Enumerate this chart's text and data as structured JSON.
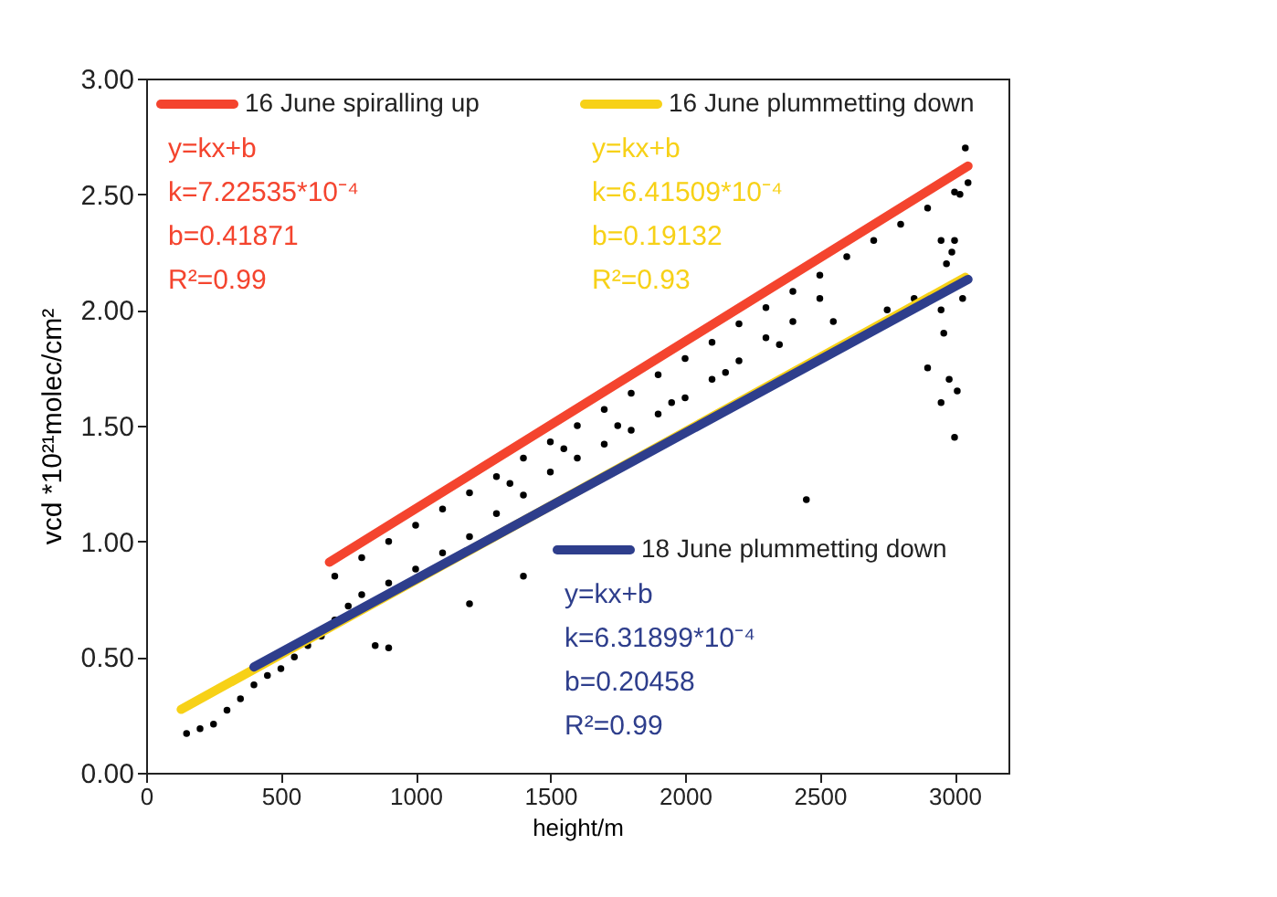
{
  "chart_data": {
    "type": "scatter",
    "xlabel": "height/m",
    "ylabel": "vcd  *10²¹molec/cm²",
    "xlim": [
      0,
      3200
    ],
    "ylim": [
      0,
      3
    ],
    "xticks": [
      0,
      500,
      1000,
      1500,
      2000,
      2500,
      3000
    ],
    "yticks": [
      {
        "value": 0,
        "label": "0.00"
      },
      {
        "value": 0.5,
        "label": "0.50"
      },
      {
        "value": 1,
        "label": "1.00"
      },
      {
        "value": 1.5,
        "label": "1.50"
      },
      {
        "value": 2,
        "label": "2.00"
      },
      {
        "value": 2.5,
        "label": "2.50"
      },
      {
        "value": 3,
        "label": "3.00"
      }
    ],
    "grid": false,
    "legend": "top left",
    "series": [
      {
        "marker": "circle",
        "color": "#000000",
        "x": [
          150,
          200,
          250,
          300,
          350,
          400,
          450,
          500,
          550,
          600,
          650,
          700,
          750,
          800,
          850,
          900,
          900,
          1000,
          1100,
          1200,
          1300,
          1400,
          1500,
          1600,
          1700,
          1800,
          1900,
          2000,
          2100,
          2200,
          2300,
          2400,
          2450,
          2500,
          1200,
          1400,
          700,
          800,
          900,
          1000,
          1100,
          1200,
          1300,
          1400,
          1500,
          1600,
          1700,
          1800,
          1900,
          2000,
          2100,
          2200,
          2300,
          2400,
          2500,
          2600,
          2700,
          2800,
          2900,
          3000,
          1350,
          1550,
          1750,
          1950,
          2150,
          2350,
          2550,
          2750,
          2850,
          2950,
          2950,
          2960,
          2970,
          2980,
          2990,
          3000,
          3000,
          3010,
          3020,
          3030,
          3040,
          3050,
          2950,
          2900
        ],
        "values": [
          0.17,
          0.19,
          0.21,
          0.27,
          0.32,
          0.38,
          0.42,
          0.45,
          0.5,
          0.55,
          0.59,
          0.66,
          0.72,
          0.77,
          0.55,
          0.54,
          0.82,
          0.88,
          0.95,
          1.02,
          1.12,
          1.2,
          1.3,
          1.36,
          1.42,
          1.48,
          1.55,
          1.62,
          1.7,
          1.78,
          1.88,
          1.95,
          1.18,
          2.05,
          0.73,
          0.85,
          0.85,
          0.93,
          1.0,
          1.07,
          1.14,
          1.21,
          1.28,
          1.36,
          1.43,
          1.5,
          1.57,
          1.64,
          1.72,
          1.79,
          1.86,
          1.94,
          2.01,
          2.08,
          2.15,
          2.23,
          2.3,
          2.37,
          2.44,
          2.51,
          1.25,
          1.4,
          1.5,
          1.6,
          1.73,
          1.85,
          1.95,
          2.0,
          2.05,
          2.3,
          2.0,
          1.9,
          2.2,
          1.7,
          2.25,
          2.3,
          1.45,
          1.65,
          2.5,
          2.05,
          2.7,
          2.55,
          1.6,
          1.75
        ]
      },
      {
        "type": "line",
        "marker": "none",
        "name": "16 June spiralling up",
        "color": "#f4442e",
        "x": [
          680,
          3050
        ],
        "values": [
          0.91,
          2.622
        ]
      },
      {
        "type": "line",
        "marker": "none",
        "name": "16 June plummetting down",
        "color": "#f7d117",
        "x": [
          130,
          3040
        ],
        "values": [
          0.274,
          2.141
        ]
      },
      {
        "type": "line",
        "marker": "none",
        "name": "18 June plummetting down",
        "color": "#2e3e8c",
        "x": [
          400,
          3050
        ],
        "values": [
          0.457,
          2.132
        ]
      }
    ],
    "annotations": [
      "y=kx+b",
      "k=7.22535*10⁻⁴",
      "b=0.41871",
      "R²=0.99",
      "y=kx+b",
      "k=6.41509*10⁻⁴",
      "b=0.19132",
      "R²=0.93",
      "y=kx+b",
      "k=6.31899*10⁻⁴",
      "b=0.20458",
      "R²=0.99"
    ]
  }
}
